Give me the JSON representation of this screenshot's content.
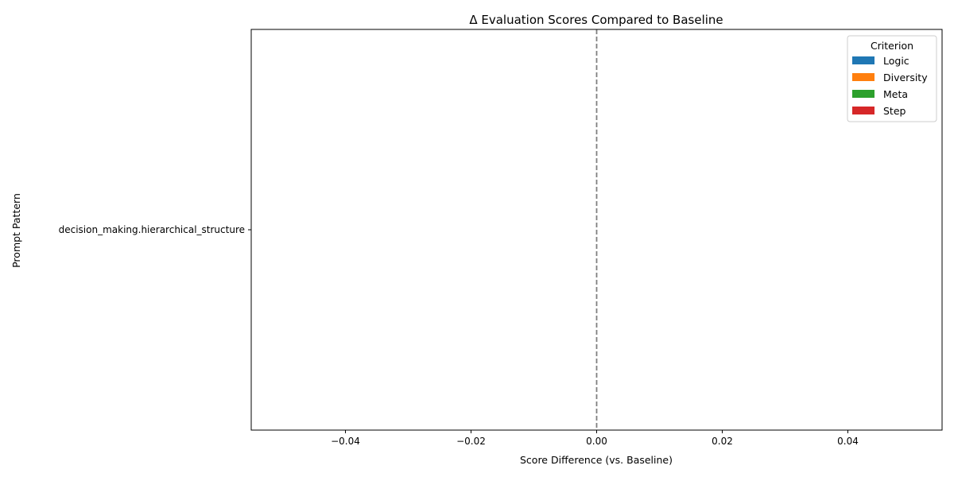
{
  "chart_data": {
    "type": "bar",
    "orientation": "horizontal",
    "title": "Δ Evaluation Scores Compared to Baseline",
    "xlabel": "Score Difference (vs. Baseline)",
    "ylabel": "Prompt Pattern",
    "categories": [
      "decision_making.hierarchical_structure"
    ],
    "series": [
      {
        "name": "Logic",
        "color": "#1f77b4",
        "values": [
          0
        ]
      },
      {
        "name": "Diversity",
        "color": "#ff7f0e",
        "values": [
          0
        ]
      },
      {
        "name": "Meta",
        "color": "#2ca02c",
        "values": [
          0
        ]
      },
      {
        "name": "Step",
        "color": "#d62728",
        "values": [
          0
        ]
      }
    ],
    "xlim": [
      -0.055,
      0.055
    ],
    "xticks": [
      -0.04,
      -0.02,
      0.0,
      0.02,
      0.04
    ],
    "xtick_labels": [
      "−0.04",
      "−0.02",
      "0.00",
      "0.02",
      "0.04"
    ],
    "reference_line": {
      "x": 0,
      "style": "dashed",
      "color": "#808080"
    },
    "legend": {
      "title": "Criterion",
      "placement": "top-right"
    },
    "grid": false
  }
}
